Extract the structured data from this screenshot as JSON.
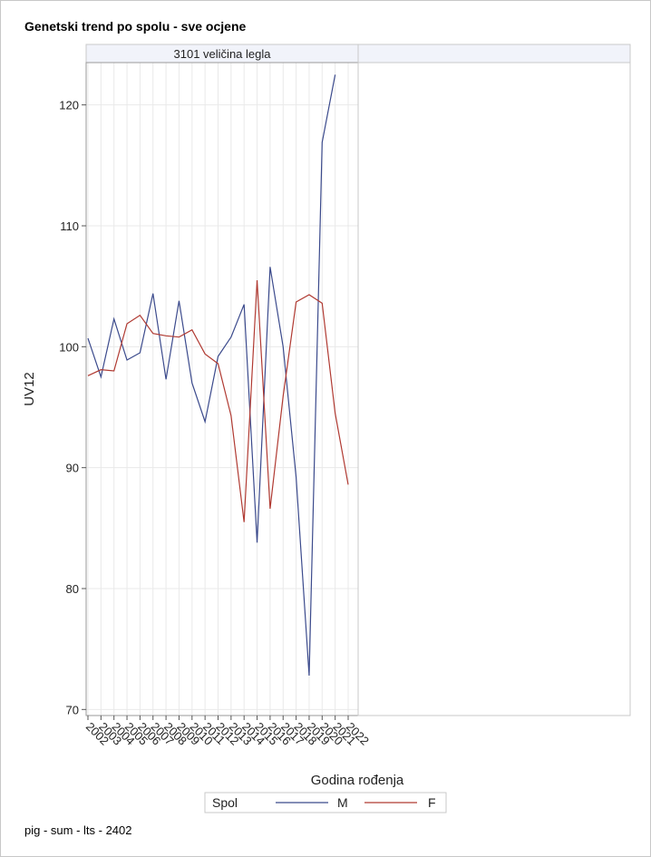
{
  "title": "Genetski trend po spolu - sve ocjene",
  "footnote": "pig - sum - lts - 2402",
  "chart_data": {
    "type": "line",
    "panels": [
      {
        "header": "3101 veličina legla",
        "has_data": true
      },
      {
        "header": "",
        "has_data": false
      }
    ],
    "xlabel": "Godina rođenja",
    "ylabel": "UV12",
    "x": [
      "2002",
      "2003",
      "2004",
      "2005",
      "2006",
      "2007",
      "2008",
      "2009",
      "2010",
      "2011",
      "2012",
      "2013",
      "2014",
      "2015",
      "2016",
      "2017",
      "2018",
      "2019",
      "2020",
      "2021",
      "2022"
    ],
    "ylim": [
      69.5,
      123.5
    ],
    "yticks": [
      70,
      80,
      90,
      100,
      110,
      120
    ],
    "grid": true,
    "legend": {
      "title": "Spol",
      "position": "bottom"
    },
    "series": [
      {
        "name": "M",
        "color": "#3b4a8c",
        "values": [
          100.7,
          97.5,
          102.3,
          98.9,
          99.5,
          104.4,
          97.3,
          103.8,
          97.0,
          93.8,
          99.2,
          100.8,
          103.5,
          83.8,
          106.6,
          100.0,
          89.2,
          72.8,
          116.9,
          122.5,
          null
        ]
      },
      {
        "name": "F",
        "color": "#b03a32",
        "values": [
          97.6,
          98.1,
          98.0,
          101.9,
          102.6,
          101.1,
          100.9,
          100.8,
          101.4,
          99.4,
          98.6,
          94.3,
          85.5,
          105.5,
          86.6,
          95.9,
          103.7,
          104.3,
          103.6,
          94.5,
          88.6
        ]
      }
    ]
  }
}
